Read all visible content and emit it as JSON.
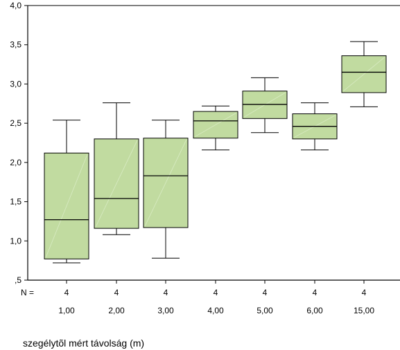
{
  "chart_data": {
    "type": "boxplot",
    "title": "",
    "xlabel": "szegélytõl mért távolság (m)",
    "ylabel": "",
    "ylim": [
      0.5,
      4.0
    ],
    "yticks": [
      0.5,
      1.0,
      1.5,
      2.0,
      2.5,
      3.0,
      3.5,
      4.0
    ],
    "ytick_labels": [
      ",5",
      "1,0",
      "1,5",
      "2,0",
      "2,5",
      "3,0",
      "3,5",
      "4,0"
    ],
    "n_label": "N =",
    "box_color": "#c1dba0",
    "grid": false,
    "categories": [
      "1,00",
      "2,00",
      "3,00",
      "4,00",
      "5,00",
      "6,00",
      "15,00"
    ],
    "n": [
      "4",
      "4",
      "4",
      "4",
      "4",
      "4",
      "4"
    ],
    "boxes": [
      {
        "whisker_low": 0.72,
        "q1": 0.77,
        "median": 1.27,
        "q3": 2.12,
        "whisker_high": 2.54
      },
      {
        "whisker_low": 1.08,
        "q1": 1.16,
        "median": 1.54,
        "q3": 2.3,
        "whisker_high": 2.76
      },
      {
        "whisker_low": 0.78,
        "q1": 1.17,
        "median": 1.83,
        "q3": 2.31,
        "whisker_high": 2.54
      },
      {
        "whisker_low": 2.16,
        "q1": 2.31,
        "median": 2.53,
        "q3": 2.65,
        "whisker_high": 2.72
      },
      {
        "whisker_low": 2.38,
        "q1": 2.56,
        "median": 2.74,
        "q3": 2.91,
        "whisker_high": 3.08
      },
      {
        "whisker_low": 2.16,
        "q1": 2.3,
        "median": 2.46,
        "q3": 2.62,
        "whisker_high": 2.76
      },
      {
        "whisker_low": 2.71,
        "q1": 2.89,
        "median": 3.15,
        "q3": 3.36,
        "whisker_high": 3.54
      }
    ]
  }
}
